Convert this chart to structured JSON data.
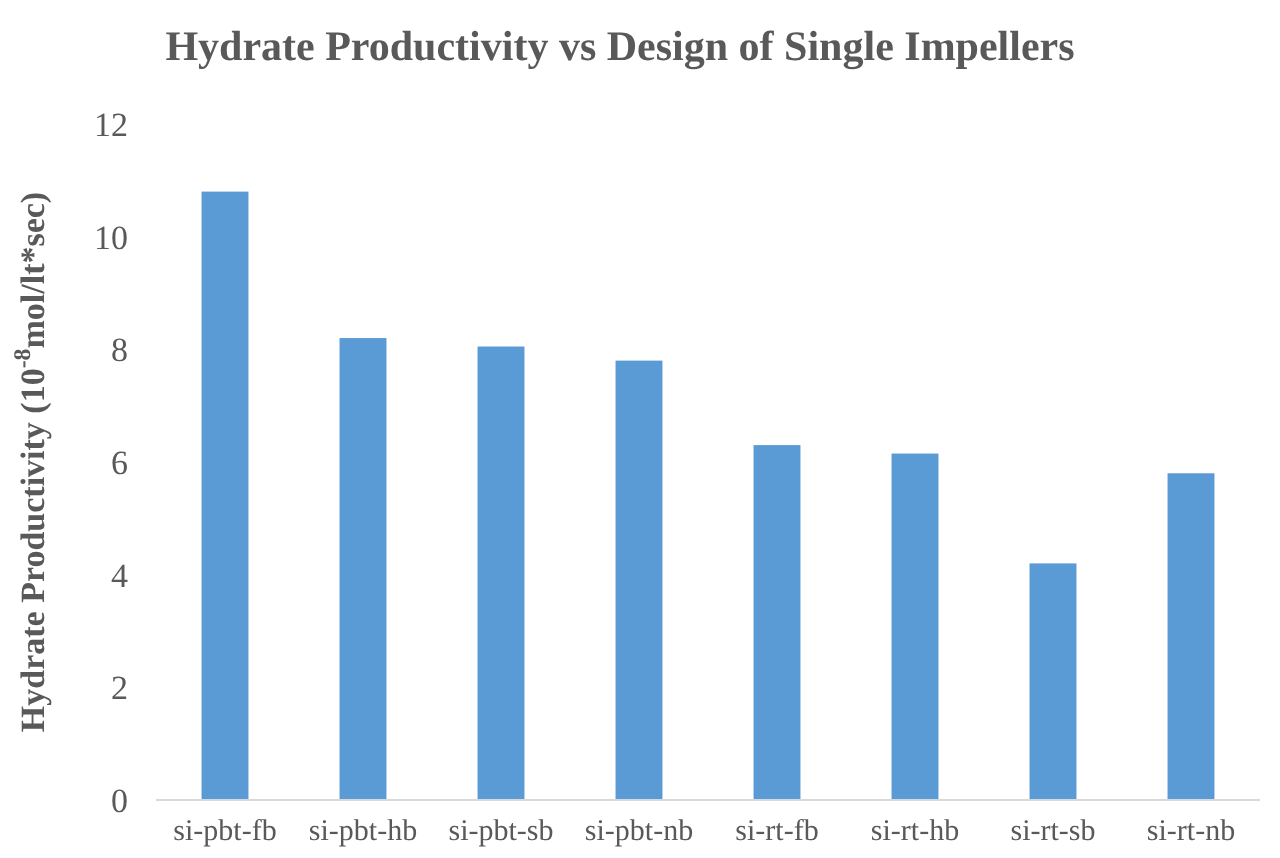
{
  "chart_data": {
    "type": "bar",
    "title": "Hydrate Productivity vs Design of Single Impellers",
    "ylabel": "Hydrate Productivity (10$^{-8}$mol/lt*sec)",
    "categories": [
      "si-pbt-fb",
      "si-pbt-hb",
      "si-pbt-sb",
      "si-pbt-nb",
      "si-rt-fb",
      "si-rt-hb",
      "si-rt-sb",
      "si-rt-nb"
    ],
    "values": [
      10.8,
      8.2,
      8.05,
      7.8,
      6.3,
      6.15,
      4.2,
      5.8
    ],
    "color": "#5b9bd5",
    "ylim": [
      0,
      12
    ],
    "yticks": [
      0,
      2,
      4,
      6,
      8,
      10,
      12
    ]
  }
}
